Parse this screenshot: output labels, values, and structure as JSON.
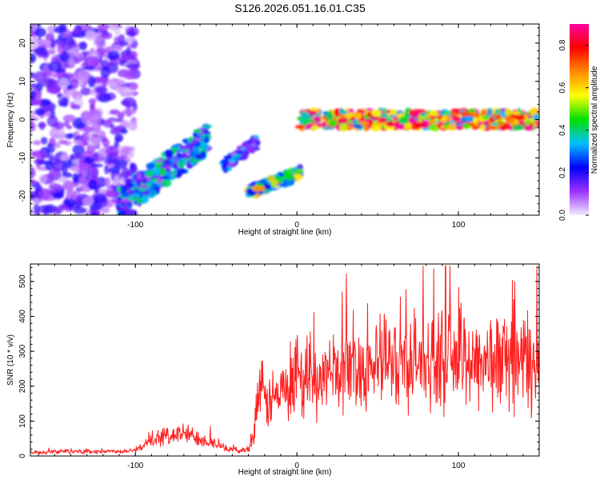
{
  "page_title": "S126.2026.051.16.01.C35",
  "chart_data": [
    {
      "type": "heatmap",
      "title": "S126.2026.051.16.01.C35",
      "xlabel": "Height of straight line (km)",
      "ylabel": "Frequency (Hz)",
      "xlim": [
        -165,
        150
      ],
      "ylim": [
        -25,
        25
      ],
      "xticks": [
        -100,
        0,
        100
      ],
      "yticks": [
        -20,
        -10,
        0,
        10,
        20
      ],
      "colorbar": {
        "label": "Normalized spectral amplitude",
        "range": [
          0.0,
          0.9
        ],
        "ticks": [
          0.0,
          0.2,
          0.4,
          0.6,
          0.8
        ],
        "colormap": [
          "#f2ecfb",
          "#9b30ff",
          "#0000ff",
          "#00c0ff",
          "#00e000",
          "#ffff00",
          "#ff8c00",
          "#ff0000",
          "#ff00a0"
        ]
      },
      "bands": [
        {
          "name": "diffuse noise (left)",
          "x": [
            -165,
            -100
          ],
          "freq": [
            -25,
            25
          ],
          "amplitude": 0.12
        },
        {
          "name": "rising trace 1",
          "x": [
            -110,
            -55
          ],
          "freq": [
            -22,
            -5
          ],
          "amplitude": 0.35
        },
        {
          "name": "rising trace 2",
          "x": [
            -45,
            -25
          ],
          "freq": [
            -12,
            -6
          ],
          "amplitude": 0.3
        },
        {
          "name": "rising trace 3",
          "x": [
            -30,
            2
          ],
          "freq": [
            -19,
            -14
          ],
          "amplitude": 0.55
        },
        {
          "name": "steady trace",
          "x": [
            2,
            150
          ],
          "freq": [
            -2,
            2
          ],
          "amplitude": 0.8
        }
      ]
    },
    {
      "type": "line",
      "xlabel": "Height of straight line (km)",
      "ylabel": "SNR (10 * v/v)",
      "xlim": [
        -165,
        150
      ],
      "ylim": [
        0,
        550
      ],
      "xticks": [
        -100,
        0,
        100
      ],
      "yticks": [
        0,
        100,
        200,
        300,
        400,
        500
      ],
      "series": [
        {
          "name": "SNR",
          "color": "#ff2020",
          "x": [
            -165,
            -150,
            -140,
            -130,
            -120,
            -110,
            -100,
            -95,
            -90,
            -85,
            -80,
            -75,
            -70,
            -65,
            -60,
            -55,
            -50,
            -45,
            -40,
            -35,
            -30,
            -27,
            -25,
            -22,
            -20,
            -15,
            -10,
            -5,
            0,
            5,
            10,
            20,
            30,
            40,
            50,
            60,
            70,
            80,
            90,
            100,
            110,
            120,
            130,
            140,
            145,
            150
          ],
          "values": [
            10,
            12,
            15,
            12,
            14,
            13,
            18,
            28,
            42,
            52,
            58,
            62,
            64,
            58,
            52,
            42,
            35,
            22,
            18,
            16,
            20,
            60,
            160,
            180,
            155,
            165,
            175,
            185,
            190,
            205,
            215,
            230,
            250,
            255,
            265,
            270,
            275,
            270,
            275,
            280,
            275,
            270,
            270,
            280,
            250,
            240
          ],
          "spread": [
            5,
            7,
            8,
            6,
            7,
            6,
            8,
            14,
            20,
            25,
            28,
            32,
            32,
            28,
            25,
            20,
            16,
            10,
            8,
            8,
            12,
            35,
            90,
            100,
            85,
            90,
            95,
            100,
            100,
            105,
            110,
            115,
            120,
            125,
            130,
            135,
            140,
            140,
            140,
            145,
            145,
            145,
            145,
            150,
            170,
            170
          ]
        }
      ]
    }
  ]
}
